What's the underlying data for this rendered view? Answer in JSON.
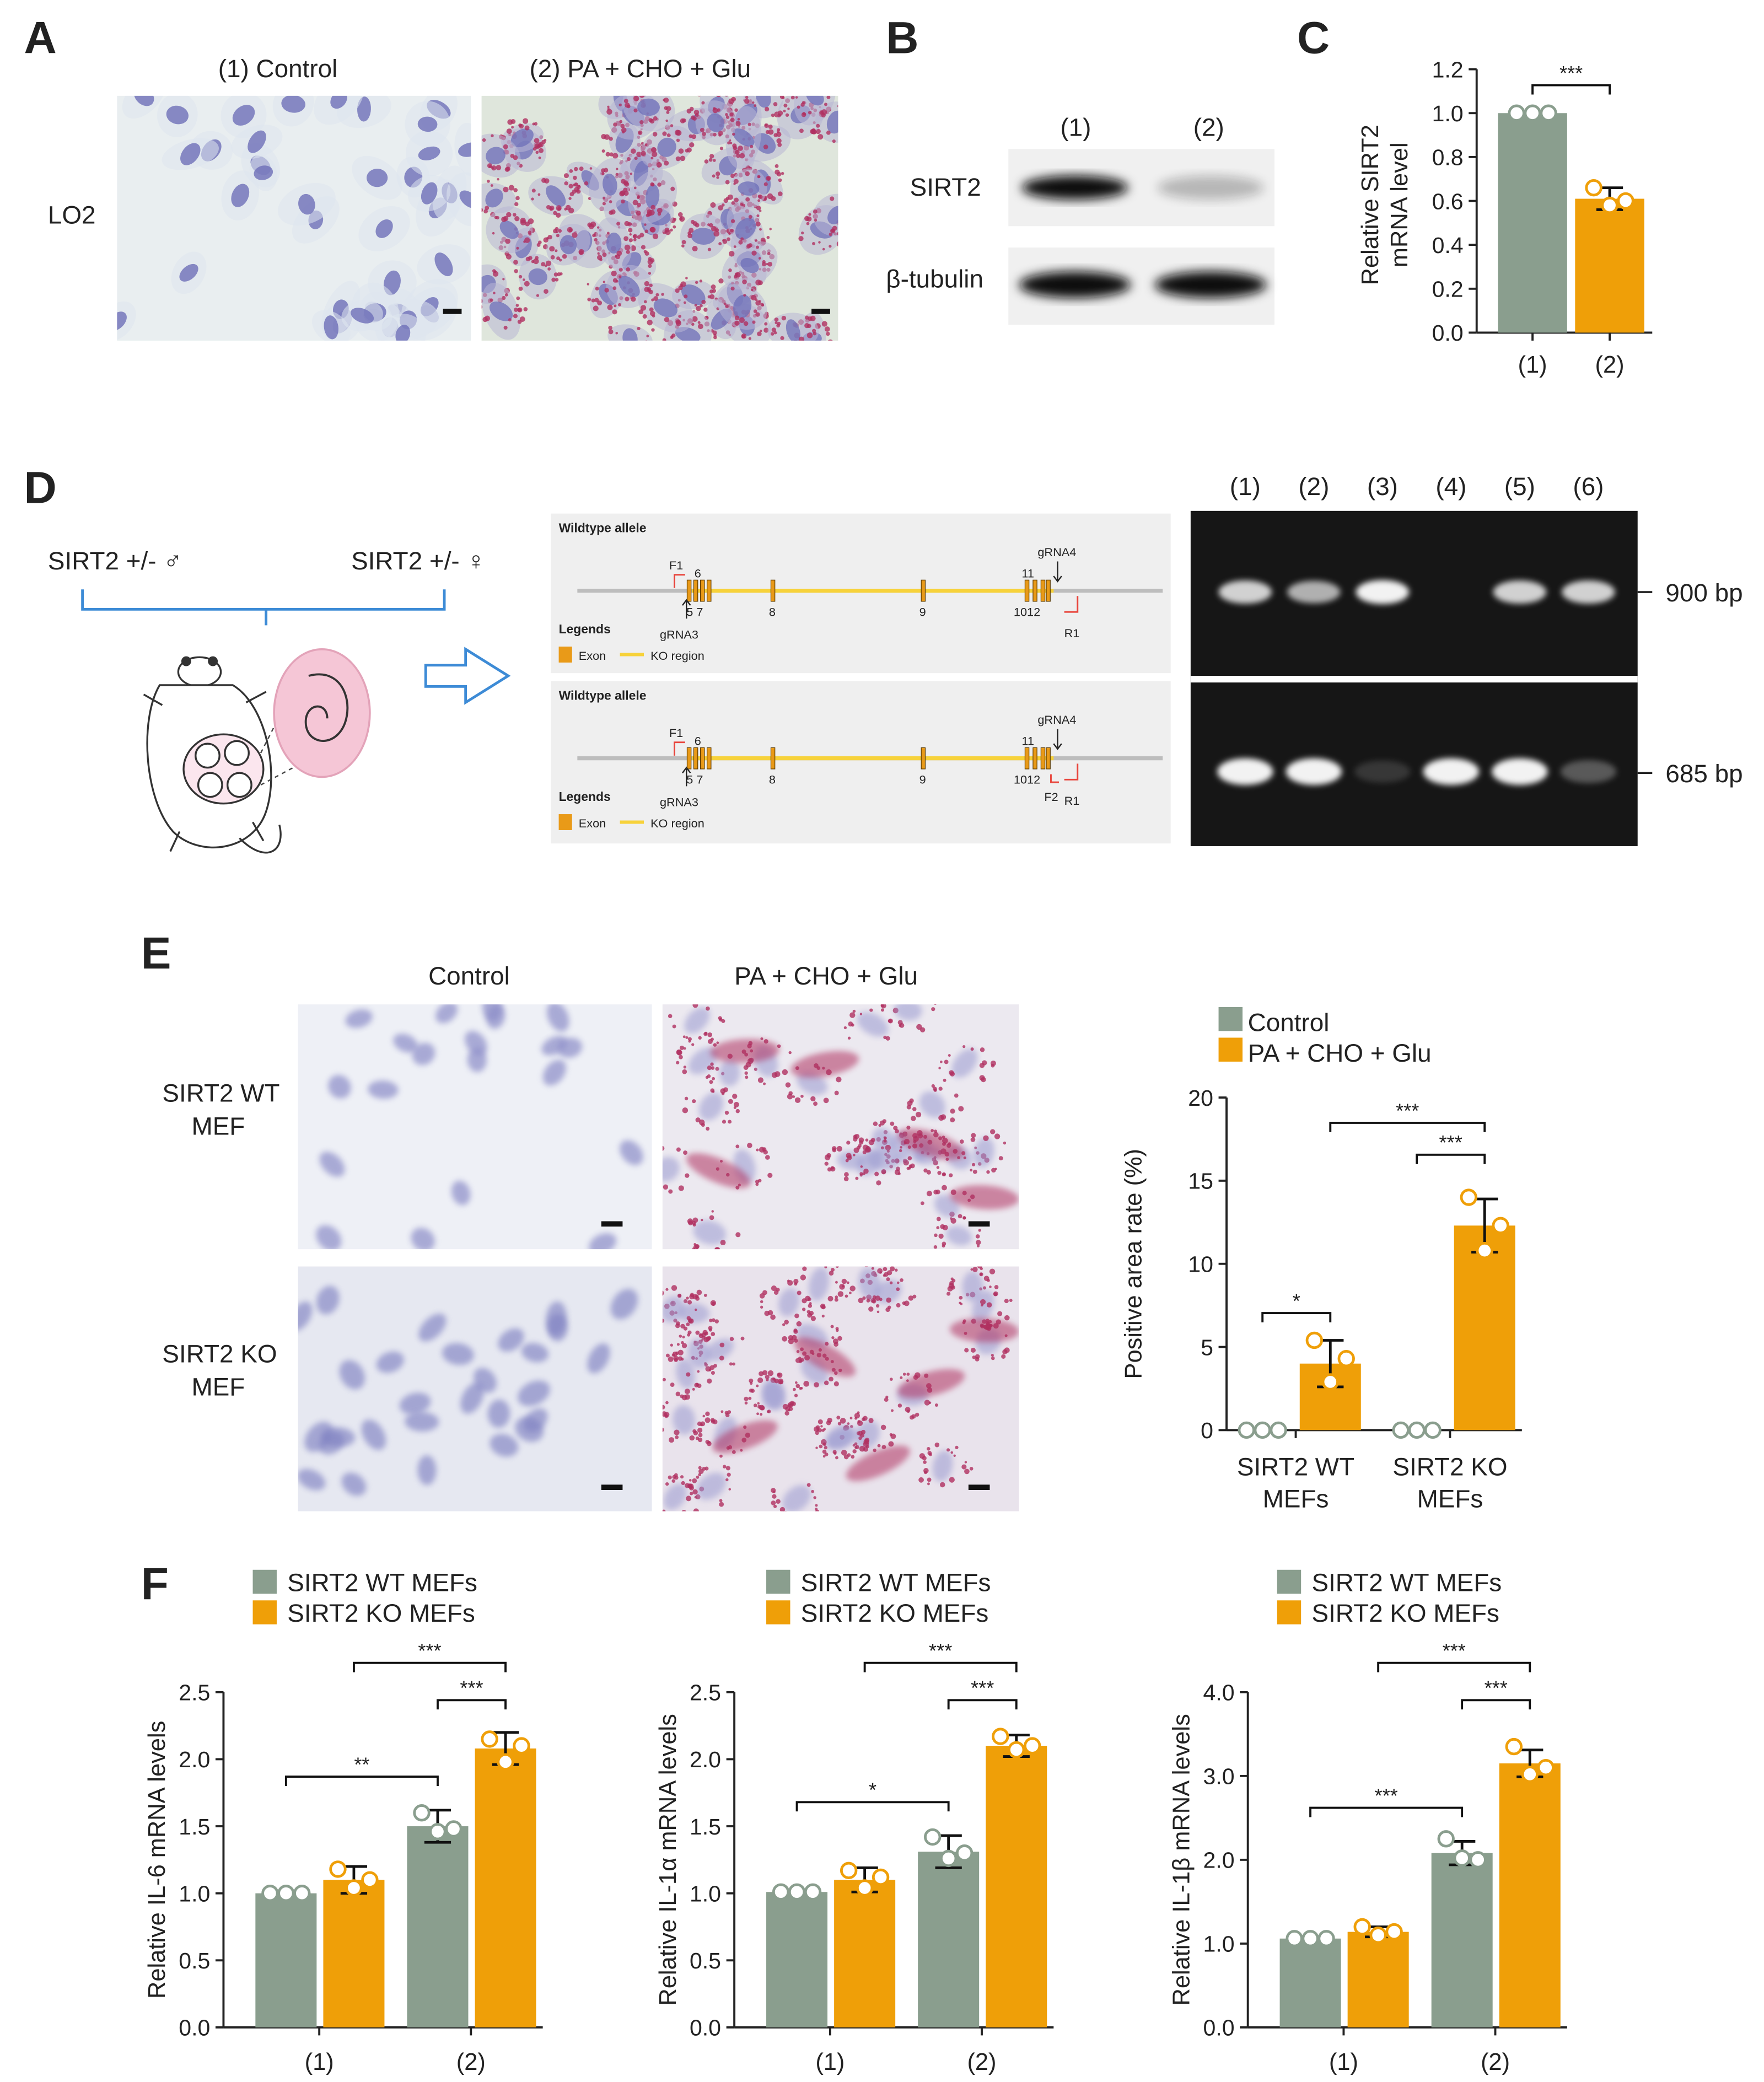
{
  "colors": {
    "control": "#8a9e8e",
    "treated": "#ef9f08",
    "text": "#222222",
    "gel_bg": "#161616",
    "blot_bg": "#f0f0f0",
    "stain_blue": "#6e6fb8",
    "stain_red": "#b03060",
    "scheme_bg": "#efefef",
    "ko_line": "#f7d23a",
    "exon": "#e99a18",
    "primer": "#e8453c",
    "cross_line": "#3d8bd6",
    "embryo_pink": "#f5c6d6"
  },
  "panel_A": {
    "letter": "A",
    "label_1": "(1)   Control",
    "label_2": "(2)   PA + CHO + Glu",
    "row_label": "LO2"
  },
  "panel_B": {
    "letter": "B",
    "lane_1": "(1)",
    "lane_2": "(2)",
    "row_1": "SIRT2",
    "row_2": "β-tubulin",
    "sirt2_band_intensity": [
      1.0,
      0.25
    ],
    "tubulin_band_intensity": [
      1.0,
      1.0
    ]
  },
  "panel_C": {
    "letter": "C",
    "sig": "***",
    "chart_data": {
      "type": "bar",
      "categories": [
        "(1)",
        "(2)"
      ],
      "values": [
        1.0,
        0.61
      ],
      "errors": [
        0.0,
        0.05
      ],
      "points": [
        [
          1.0,
          1.0,
          1.0
        ],
        [
          0.66,
          0.58,
          0.6
        ]
      ],
      "ylabel_line1": "Relative SIRT2",
      "ylabel_line2": "mRNA level",
      "ylim": [
        0,
        1.2
      ],
      "yticks": [
        "0.0",
        "0.2",
        "0.4",
        "0.6",
        "0.8",
        "1.0",
        "1.2"
      ]
    }
  },
  "panel_D": {
    "letter": "D",
    "cross_left": "SIRT2 +/-  ♂",
    "cross_right": "SIRT2 +/-  ♀",
    "scheme_title_1": "Wildtype allele",
    "scheme_title_2": "Wildtype allele",
    "legends": "Legends",
    "exon_label": "Exon",
    "ko_label": "KO region",
    "primer_f1": "F1",
    "primer_f2": "F2",
    "primer_r1": "R1",
    "grna3": "gRNA3",
    "grna4": "gRNA4",
    "exon_6": "6",
    "exon_57": "5 7",
    "exon_8": "8",
    "exon_9": "9",
    "exon_11": "11",
    "exon_1012": "1012",
    "lanes": [
      "(1)",
      "(2)",
      "(3)",
      "(4)",
      "(5)",
      "(6)"
    ],
    "band_top_label": "900 bp",
    "band_bottom_label": "685 bp",
    "band_top_intensity": [
      0.85,
      0.7,
      1.0,
      0.0,
      0.85,
      0.85
    ],
    "band_bottom_intensity": [
      1.0,
      1.0,
      0.15,
      1.0,
      1.0,
      0.3
    ]
  },
  "panel_E": {
    "letter": "E",
    "col_1": "Control",
    "col_2": "PA + CHO + Glu",
    "row_1_a": "SIRT2 WT",
    "row_1_b": "MEF",
    "row_2_a": "SIRT2 KO",
    "row_2_b": "MEF",
    "legend_control": "Control",
    "legend_treated": "PA + CHO + Glu",
    "sig_wt": "*",
    "sig_ko": "***",
    "sig_between": "***",
    "chart_data": {
      "type": "bar",
      "groups": [
        [
          "SIRT2 WT",
          "MEFs"
        ],
        [
          "SIRT2 KO",
          "MEFs"
        ]
      ],
      "series": [
        {
          "name": "Control",
          "values": [
            0,
            0
          ],
          "errors": [
            0,
            0
          ],
          "points": [
            [
              0,
              0,
              0
            ],
            [
              0,
              0,
              0
            ]
          ]
        },
        {
          "name": "PA + CHO + Glu",
          "values": [
            4.0,
            12.3
          ],
          "errors": [
            1.4,
            1.6
          ],
          "points": [
            [
              5.4,
              2.9,
              4.3
            ],
            [
              14.0,
              10.8,
              12.3
            ]
          ]
        }
      ],
      "ylabel": "Positive  area  rate  (%)",
      "ylim": [
        0,
        20
      ],
      "yticks": [
        "0",
        "5",
        "10",
        "15",
        "20"
      ]
    }
  },
  "panel_F": {
    "letter": "F",
    "legend_wt": "SIRT2 WT MEFs",
    "legend_ko": "SIRT2 KO MEFs",
    "charts": [
      {
        "ylabel": "Relative IL-6 mRNA levels",
        "ylim": [
          0,
          2.5
        ],
        "yticks": [
          "0.0",
          "0.5",
          "1.0",
          "1.5",
          "2.0",
          "2.5"
        ],
        "categories": [
          "(1)",
          "(2)"
        ],
        "wt_values": [
          1.0,
          1.5
        ],
        "wt_errors": [
          0.0,
          0.12
        ],
        "ko_values": [
          1.1,
          2.08
        ],
        "ko_errors": [
          0.1,
          0.12
        ],
        "wt_points": [
          [
            1.0,
            1.0,
            1.0
          ],
          [
            1.6,
            1.46,
            1.48
          ]
        ],
        "ko_points": [
          [
            1.18,
            1.04,
            1.1
          ],
          [
            2.15,
            1.98,
            2.1
          ]
        ],
        "sig_1": "**",
        "sig_2": "***",
        "sig_3": "***"
      },
      {
        "ylabel": "Relative IL-1α mRNA levels",
        "ylim": [
          0,
          2.5
        ],
        "yticks": [
          "0.0",
          "0.5",
          "1.0",
          "1.5",
          "2.0",
          "2.5"
        ],
        "categories": [
          "(1)",
          "(2)"
        ],
        "wt_values": [
          1.01,
          1.31
        ],
        "wt_errors": [
          0.0,
          0.12
        ],
        "ko_values": [
          1.1,
          2.1
        ],
        "ko_errors": [
          0.09,
          0.08
        ],
        "wt_points": [
          [
            1.01,
            1.01,
            1.01
          ],
          [
            1.42,
            1.26,
            1.3
          ]
        ],
        "ko_points": [
          [
            1.17,
            1.04,
            1.12
          ],
          [
            2.17,
            2.07,
            2.1
          ]
        ],
        "sig_1": "*",
        "sig_2": "***",
        "sig_3": "***"
      },
      {
        "ylabel": "Relative IL-1β mRNA levels",
        "ylim": [
          0,
          4.0
        ],
        "yticks": [
          "0.0",
          "1.0",
          "2.0",
          "3.0",
          "4.0"
        ],
        "categories": [
          "(1)",
          "(2)"
        ],
        "wt_values": [
          1.06,
          2.08
        ],
        "wt_errors": [
          0.0,
          0.14
        ],
        "ko_values": [
          1.14,
          3.15
        ],
        "ko_errors": [
          0.06,
          0.16
        ],
        "wt_points": [
          [
            1.06,
            1.06,
            1.06
          ],
          [
            2.25,
            2.02,
            2.0
          ]
        ],
        "ko_points": [
          [
            1.2,
            1.1,
            1.14
          ],
          [
            3.35,
            3.02,
            3.1
          ]
        ],
        "sig_1": "***",
        "sig_2": "***",
        "sig_3": "***"
      }
    ]
  }
}
